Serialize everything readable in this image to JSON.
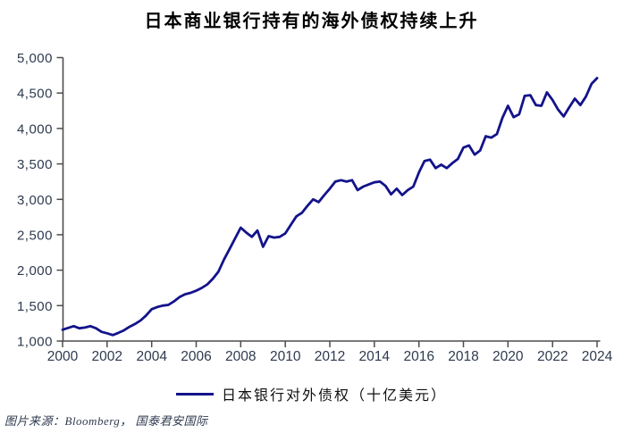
{
  "title": "日本商业银行持有的海外债权持续上升",
  "legend": {
    "label": "日本银行对外债权（十亿美元）"
  },
  "source": "图片来源：Bloomberg， 国泰君安国际",
  "colors": {
    "line": "#13138b",
    "axis": "#4d4d4d",
    "tick_label": "#2e3a4e",
    "title": "#000000"
  },
  "chart_data": {
    "type": "line",
    "title": "日本商业银行持有的海外债权持续上升",
    "xlabel": "",
    "ylabel": "",
    "xlim": [
      2000,
      2024
    ],
    "ylim": [
      1000,
      5000
    ],
    "x_ticks": [
      2000,
      2002,
      2004,
      2006,
      2008,
      2010,
      2012,
      2014,
      2016,
      2018,
      2020,
      2022,
      2024
    ],
    "y_ticks": [
      1000,
      1500,
      2000,
      2500,
      3000,
      3500,
      4000,
      4500,
      5000
    ],
    "grid": false,
    "legend_position": "bottom",
    "series": [
      {
        "name": "日本银行对外债权（十亿美元）",
        "unit": "billion USD",
        "x_start": 2000,
        "x_step": 0.25,
        "values": [
          1160,
          1185,
          1210,
          1180,
          1190,
          1210,
          1180,
          1130,
          1110,
          1085,
          1115,
          1150,
          1200,
          1240,
          1290,
          1360,
          1450,
          1480,
          1500,
          1510,
          1560,
          1620,
          1660,
          1680,
          1710,
          1750,
          1800,
          1880,
          1980,
          2150,
          2300,
          2450,
          2600,
          2530,
          2470,
          2560,
          2330,
          2480,
          2460,
          2470,
          2520,
          2640,
          2760,
          2810,
          2910,
          3000,
          2960,
          3060,
          3150,
          3250,
          3270,
          3250,
          3270,
          3130,
          3180,
          3210,
          3240,
          3250,
          3190,
          3070,
          3150,
          3060,
          3130,
          3180,
          3380,
          3540,
          3560,
          3440,
          3490,
          3440,
          3510,
          3570,
          3730,
          3760,
          3630,
          3690,
          3890,
          3870,
          3920,
          4150,
          4320,
          4160,
          4200,
          4460,
          4470,
          4330,
          4320,
          4510,
          4400,
          4265,
          4170,
          4300,
          4420,
          4330,
          4450,
          4630,
          4710
        ]
      }
    ]
  }
}
